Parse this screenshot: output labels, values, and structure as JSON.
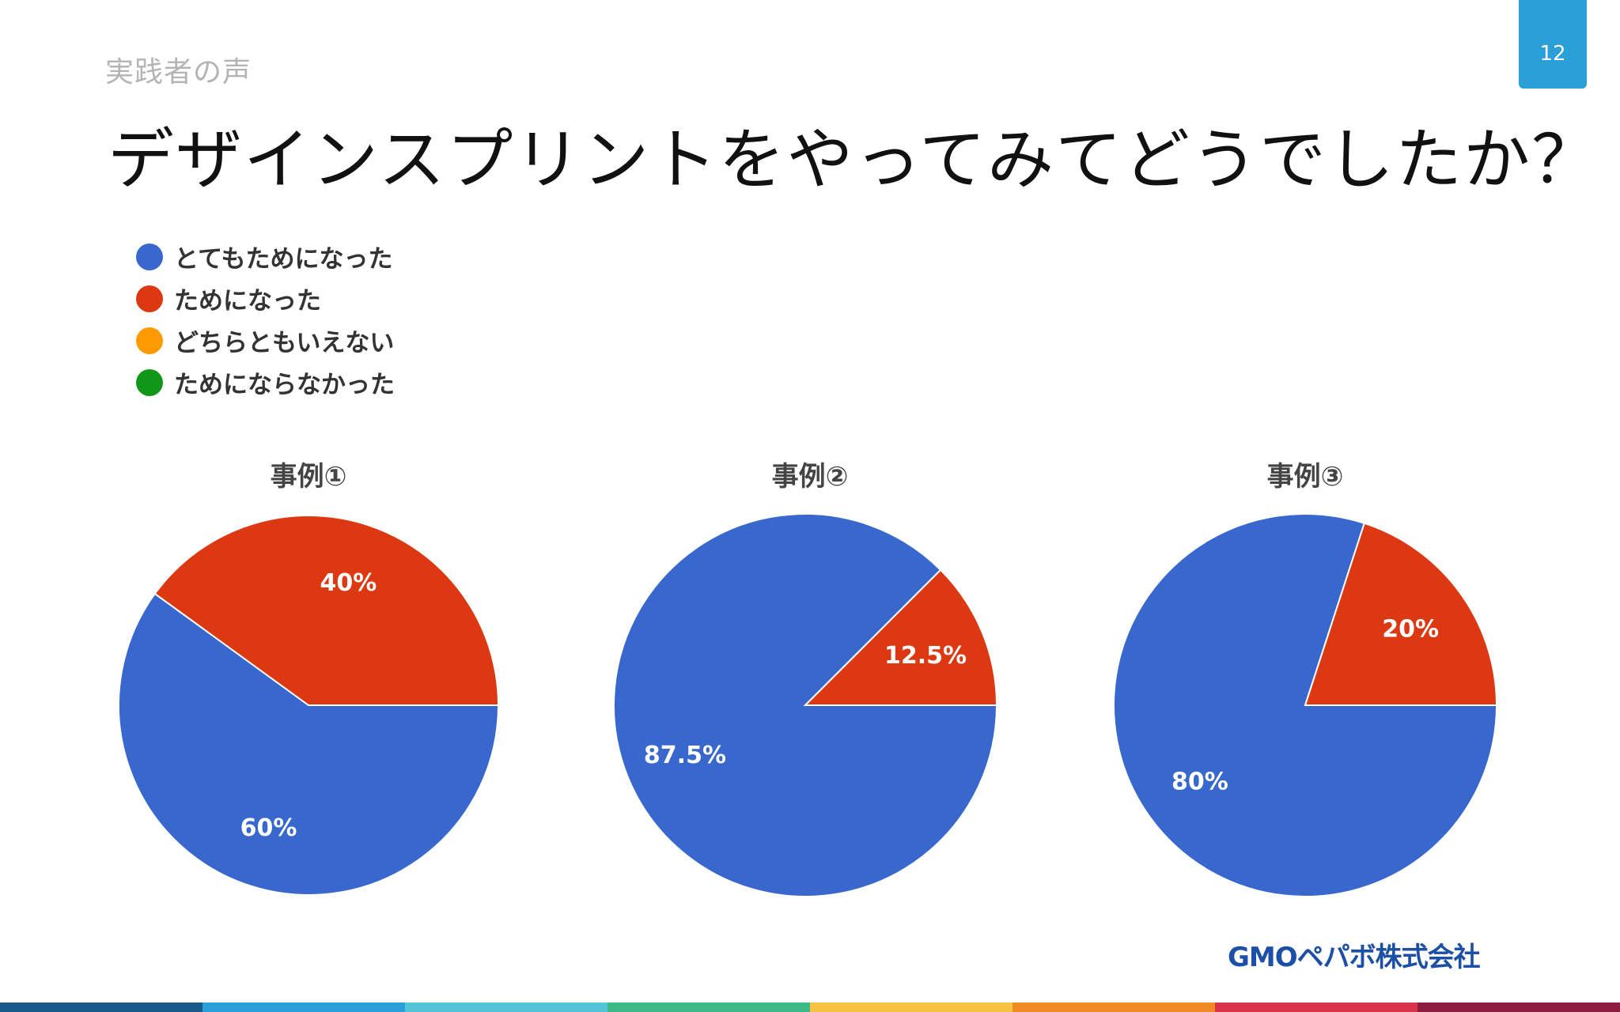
{
  "header": {
    "section": "実践者の声",
    "page_number": "12",
    "title": "デザインスプリントをやってみてどうでしたか？"
  },
  "colors": {
    "blue": "#3867cd",
    "red": "#dc3912",
    "orange": "#ff9900",
    "green": "#109618",
    "badge": "#2a9fd8"
  },
  "chart_data": [
    {
      "type": "pie",
      "title": "事例①",
      "legend_position": "top-left",
      "categories": [
        "とてもためになった",
        "ためになった",
        "どちらともいえない",
        "ためにならなかった"
      ],
      "values": [
        60,
        40,
        0,
        0
      ],
      "labels": [
        "60%",
        "40%",
        "",
        ""
      ]
    },
    {
      "type": "pie",
      "title": "事例②",
      "categories": [
        "とてもためになった",
        "ためになった",
        "どちらともいえない",
        "ためにならなかった"
      ],
      "values": [
        87.5,
        12.5,
        0,
        0
      ],
      "labels": [
        "87.5%",
        "12.5%",
        "",
        ""
      ]
    },
    {
      "type": "pie",
      "title": "事例③",
      "categories": [
        "とてもためになった",
        "ためになった",
        "どちらともいえない",
        "ためにならなかった"
      ],
      "values": [
        80,
        20,
        0,
        0
      ],
      "labels": [
        "80%",
        "20%",
        "",
        ""
      ]
    }
  ],
  "legend": [
    {
      "label": "とてもためになった",
      "color": "#3867cd"
    },
    {
      "label": "ためになった",
      "color": "#dc3912"
    },
    {
      "label": "どちらともいえない",
      "color": "#ff9900"
    },
    {
      "label": "ためにならなかった",
      "color": "#109618"
    }
  ],
  "footer": {
    "logo": "GMOペパボ株式会社",
    "stripe_colors": [
      "#1a5a8a",
      "#2a9fd8",
      "#52c6d6",
      "#3dbb87",
      "#f6c343",
      "#f08a24",
      "#d8334a",
      "#8c1d40"
    ]
  }
}
